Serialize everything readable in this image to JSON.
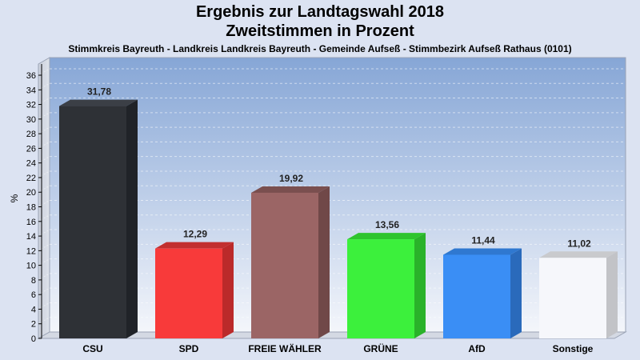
{
  "header": {
    "title_line1": "Ergebnis zur Landtagswahl 2018",
    "title_line2": "Zweitstimmen in Prozent",
    "subtitle": "Stimmkreis Bayreuth - Landkreis Landkreis Bayreuth - Gemeinde Aufseß - Stimmbezirk Aufseß Rathaus (0101)"
  },
  "chart_data": {
    "type": "bar",
    "title": "Ergebnis zur Landtagswahl 2018",
    "subtitle": "Zweitstimmen in Prozent",
    "xlabel": "",
    "ylabel": "%",
    "ylim": [
      0,
      36
    ],
    "ytick_step": 2,
    "grid": true,
    "legend": "none",
    "categories": [
      "CSU",
      "SPD",
      "FREIE WÄHLER",
      "GRÜNE",
      "AfD",
      "Sonstige"
    ],
    "values": [
      31.78,
      12.29,
      19.92,
      13.56,
      11.44,
      11.02
    ],
    "value_labels": [
      "31,78",
      "12,29",
      "19,92",
      "13,56",
      "11,44",
      "11,02"
    ],
    "colors": [
      "#2e3136",
      "#f83a3a",
      "#9b6565",
      "#3cf03c",
      "#3a8ef5",
      "#f6f7fb"
    ],
    "side_colors": [
      "#202328",
      "#bb2a2a",
      "#704848",
      "#2ab22a",
      "#2a6abb",
      "#c2c3c7"
    ],
    "top_colors": [
      "#3b3f46",
      "#c23030",
      "#7a4f4f",
      "#2ec42e",
      "#2f78d0",
      "#c9cacd"
    ]
  }
}
